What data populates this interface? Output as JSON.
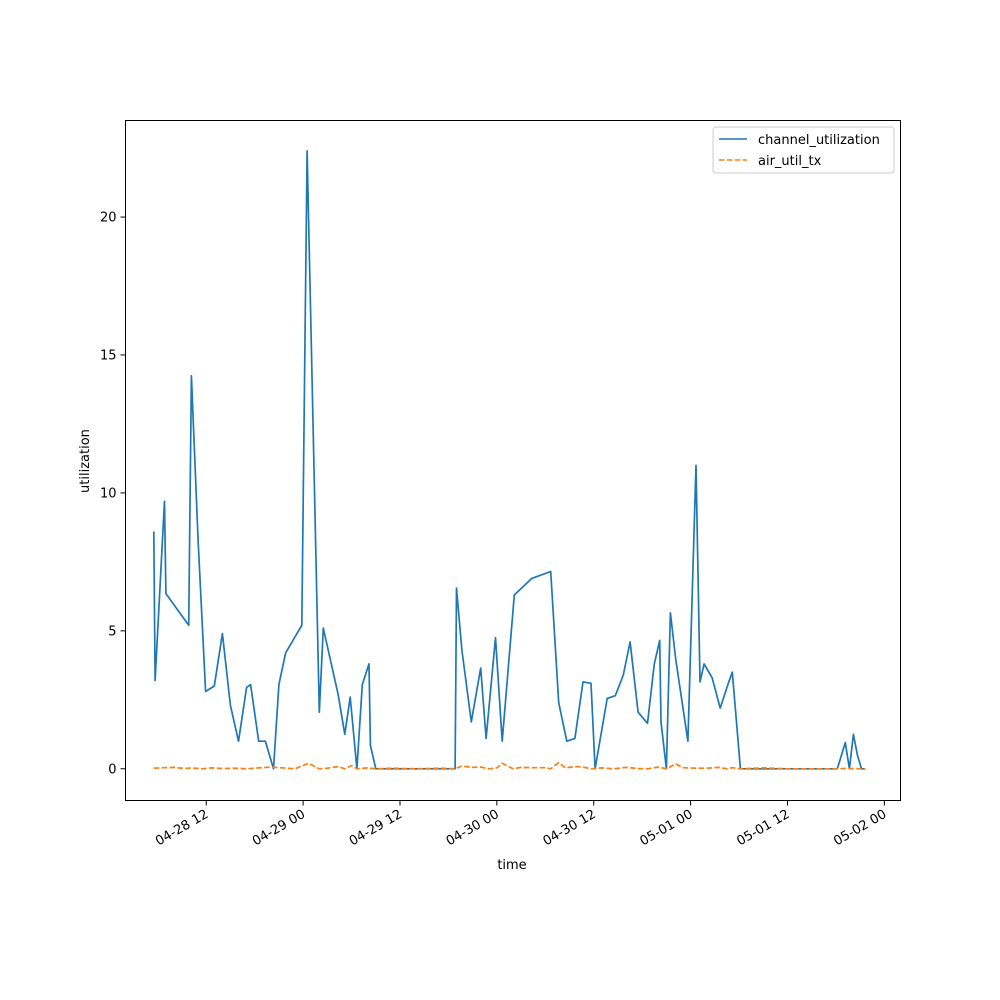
{
  "chart_data": {
    "type": "line",
    "xlabel": "time",
    "ylabel": "utilization",
    "x_axis": {
      "type": "datetime",
      "range": [
        "2025-04-28T02:00:00",
        "2025-05-02T02:00:00"
      ],
      "ticks": [
        {
          "t": "2025-04-28T12:00:00",
          "label": "04-28 12"
        },
        {
          "t": "2025-04-29T00:00:00",
          "label": "04-29 00"
        },
        {
          "t": "2025-04-29T12:00:00",
          "label": "04-29 12"
        },
        {
          "t": "2025-04-30T00:00:00",
          "label": "04-30 00"
        },
        {
          "t": "2025-04-30T12:00:00",
          "label": "04-30 12"
        },
        {
          "t": "2025-05-01T00:00:00",
          "label": "05-01 00"
        },
        {
          "t": "2025-05-01T12:00:00",
          "label": "05-01 12"
        },
        {
          "t": "2025-05-02T00:00:00",
          "label": "05-02 00"
        }
      ]
    },
    "y_axis": {
      "range": [
        -1.15,
        23.5
      ],
      "ticks": [
        0,
        5,
        10,
        15,
        20
      ]
    },
    "grid": false,
    "legend": "top-right",
    "series": [
      {
        "name": "channel_utilization",
        "color": "#1f77b4",
        "style": "solid",
        "points": [
          [
            "2025-04-28T05:30:00",
            8.6
          ],
          [
            "2025-04-28T05:40:00",
            3.2
          ],
          [
            "2025-04-28T06:50:00",
            9.7
          ],
          [
            "2025-04-28T07:00:00",
            6.35
          ],
          [
            "2025-04-28T09:50:00",
            5.2
          ],
          [
            "2025-04-28T10:10:00",
            14.25
          ],
          [
            "2025-04-28T11:00:00",
            8.2
          ],
          [
            "2025-04-28T11:55:00",
            2.8
          ],
          [
            "2025-04-28T13:00:00",
            3.0
          ],
          [
            "2025-04-28T14:00:00",
            4.9
          ],
          [
            "2025-04-28T15:00:00",
            2.3
          ],
          [
            "2025-04-28T16:00:00",
            1.0
          ],
          [
            "2025-04-28T17:00:00",
            2.95
          ],
          [
            "2025-04-28T17:30:00",
            3.05
          ],
          [
            "2025-04-28T18:30:00",
            1.0
          ],
          [
            "2025-04-28T19:20:00",
            1.0
          ],
          [
            "2025-04-28T20:20:00",
            0.0
          ],
          [
            "2025-04-28T21:00:00",
            3.05
          ],
          [
            "2025-04-28T21:50:00",
            4.2
          ],
          [
            "2025-04-28T23:50:00",
            5.2
          ],
          [
            "2025-04-29T00:30:00",
            22.4
          ],
          [
            "2025-04-29T02:00:00",
            2.05
          ],
          [
            "2025-04-29T02:30:00",
            5.1
          ],
          [
            "2025-04-29T04:20:00",
            2.7
          ],
          [
            "2025-04-29T05:10:00",
            1.25
          ],
          [
            "2025-04-29T05:50:00",
            2.6
          ],
          [
            "2025-04-29T06:40:00",
            0.0
          ],
          [
            "2025-04-29T07:20:00",
            3.05
          ],
          [
            "2025-04-29T08:10:00",
            3.8
          ],
          [
            "2025-04-29T08:20:00",
            0.85
          ],
          [
            "2025-04-29T09:00:00",
            0.0
          ],
          [
            "2025-04-29T18:50:00",
            0.0
          ],
          [
            "2025-04-29T19:00:00",
            6.55
          ],
          [
            "2025-04-29T19:40:00",
            4.3
          ],
          [
            "2025-04-29T20:50:00",
            1.7
          ],
          [
            "2025-04-29T22:00:00",
            3.65
          ],
          [
            "2025-04-29T22:40:00",
            1.1
          ],
          [
            "2025-04-29T23:50:00",
            4.75
          ],
          [
            "2025-04-30T00:40:00",
            1.0
          ],
          [
            "2025-04-30T02:10:00",
            6.3
          ],
          [
            "2025-04-30T04:20:00",
            6.9
          ],
          [
            "2025-04-30T06:40:00",
            7.15
          ],
          [
            "2025-04-30T07:40:00",
            2.4
          ],
          [
            "2025-04-30T08:40:00",
            1.0
          ],
          [
            "2025-04-30T09:40:00",
            1.1
          ],
          [
            "2025-04-30T10:40:00",
            3.15
          ],
          [
            "2025-04-30T11:40:00",
            3.1
          ],
          [
            "2025-04-30T12:10:00",
            0.0
          ],
          [
            "2025-04-30T13:40:00",
            2.55
          ],
          [
            "2025-04-30T14:40:00",
            2.65
          ],
          [
            "2025-04-30T15:40:00",
            3.4
          ],
          [
            "2025-04-30T16:30:00",
            4.6
          ],
          [
            "2025-04-30T17:30:00",
            2.05
          ],
          [
            "2025-04-30T18:40:00",
            1.65
          ],
          [
            "2025-04-30T19:30:00",
            3.8
          ],
          [
            "2025-04-30T20:10:00",
            4.65
          ],
          [
            "2025-04-30T20:20:00",
            1.7
          ],
          [
            "2025-04-30T21:00:00",
            0.0
          ],
          [
            "2025-04-30T21:30:00",
            5.65
          ],
          [
            "2025-04-30T22:10:00",
            3.95
          ],
          [
            "2025-04-30T23:40:00",
            1.0
          ],
          [
            "2025-05-01T00:40:00",
            11.0
          ],
          [
            "2025-05-01T01:10:00",
            3.15
          ],
          [
            "2025-05-01T01:40:00",
            3.8
          ],
          [
            "2025-05-01T02:40:00",
            3.3
          ],
          [
            "2025-05-01T03:40:00",
            2.2
          ],
          [
            "2025-05-01T04:40:00",
            3.1
          ],
          [
            "2025-05-01T05:10:00",
            3.5
          ],
          [
            "2025-05-01T06:10:00",
            0.0
          ],
          [
            "2025-05-01T18:10:00",
            0.0
          ],
          [
            "2025-05-01T19:10:00",
            0.95
          ],
          [
            "2025-05-01T19:40:00",
            0.0
          ],
          [
            "2025-05-01T20:10:00",
            1.25
          ],
          [
            "2025-05-01T20:40:00",
            0.5
          ],
          [
            "2025-05-01T21:10:00",
            0.0
          ],
          [
            "2025-05-01T21:40:00",
            0.0
          ]
        ]
      },
      {
        "name": "air_util_tx",
        "color": "#ff7f0e",
        "style": "dashed",
        "points": [
          [
            "2025-04-28T05:30:00",
            0.02
          ],
          [
            "2025-04-28T06:50:00",
            0.04
          ],
          [
            "2025-04-28T08:00:00",
            0.05
          ],
          [
            "2025-04-28T09:20:00",
            0.01
          ],
          [
            "2025-04-28T10:10:00",
            0.03
          ],
          [
            "2025-04-28T11:30:00",
            0.0
          ],
          [
            "2025-04-28T12:40:00",
            0.03
          ],
          [
            "2025-04-28T14:00:00",
            0.01
          ],
          [
            "2025-04-28T15:30:00",
            0.02
          ],
          [
            "2025-04-28T17:00:00",
            0.0
          ],
          [
            "2025-04-28T18:30:00",
            0.03
          ],
          [
            "2025-04-28T20:00:00",
            0.06
          ],
          [
            "2025-04-28T21:30:00",
            0.03
          ],
          [
            "2025-04-28T23:00:00",
            0.0
          ],
          [
            "2025-04-29T00:40:00",
            0.2
          ],
          [
            "2025-04-29T02:00:00",
            0.0
          ],
          [
            "2025-04-29T03:00:00",
            0.02
          ],
          [
            "2025-04-29T04:20:00",
            0.08
          ],
          [
            "2025-04-29T05:10:00",
            0.0
          ],
          [
            "2025-04-29T06:00:00",
            0.12
          ],
          [
            "2025-04-29T06:40:00",
            0.0
          ],
          [
            "2025-04-29T08:00:00",
            0.03
          ],
          [
            "2025-04-29T09:00:00",
            0.0
          ],
          [
            "2025-04-29T11:00:00",
            0.02
          ],
          [
            "2025-04-29T14:00:00",
            0.0
          ],
          [
            "2025-04-29T17:00:00",
            0.02
          ],
          [
            "2025-04-29T18:50:00",
            0.0
          ],
          [
            "2025-04-29T19:40:00",
            0.1
          ],
          [
            "2025-04-29T20:50:00",
            0.05
          ],
          [
            "2025-04-29T22:00:00",
            0.06
          ],
          [
            "2025-04-29T23:00:00",
            0.0
          ],
          [
            "2025-04-30T00:00:00",
            0.03
          ],
          [
            "2025-04-30T00:40:00",
            0.2
          ],
          [
            "2025-04-30T02:00:00",
            0.0
          ],
          [
            "2025-04-30T03:00:00",
            0.05
          ],
          [
            "2025-04-30T04:30:00",
            0.04
          ],
          [
            "2025-04-30T06:00:00",
            0.04
          ],
          [
            "2025-04-30T06:40:00",
            0.0
          ],
          [
            "2025-04-30T07:40:00",
            0.22
          ],
          [
            "2025-04-30T08:30:00",
            0.03
          ],
          [
            "2025-04-30T09:40:00",
            0.08
          ],
          [
            "2025-04-30T10:40:00",
            0.06
          ],
          [
            "2025-04-30T11:40:00",
            0.0
          ],
          [
            "2025-04-30T13:00:00",
            0.03
          ],
          [
            "2025-04-30T14:30:00",
            0.0
          ],
          [
            "2025-04-30T16:00:00",
            0.05
          ],
          [
            "2025-04-30T17:30:00",
            0.01
          ],
          [
            "2025-04-30T18:40:00",
            0.0
          ],
          [
            "2025-04-30T20:00:00",
            0.06
          ],
          [
            "2025-04-30T21:00:00",
            0.0
          ],
          [
            "2025-04-30T22:10:00",
            0.18
          ],
          [
            "2025-04-30T23:00:00",
            0.04
          ],
          [
            "2025-05-01T00:40:00",
            0.02
          ],
          [
            "2025-05-01T02:00:00",
            0.02
          ],
          [
            "2025-05-01T03:30:00",
            0.05
          ],
          [
            "2025-05-01T04:30:00",
            0.0
          ],
          [
            "2025-05-01T05:10:00",
            0.04
          ],
          [
            "2025-05-01T06:10:00",
            0.0
          ],
          [
            "2025-05-01T09:00:00",
            0.03
          ],
          [
            "2025-05-01T12:00:00",
            0.0
          ],
          [
            "2025-05-01T18:10:00",
            0.0
          ],
          [
            "2025-05-01T19:10:00",
            0.01
          ],
          [
            "2025-05-01T21:40:00",
            0.0
          ]
        ]
      }
    ]
  }
}
